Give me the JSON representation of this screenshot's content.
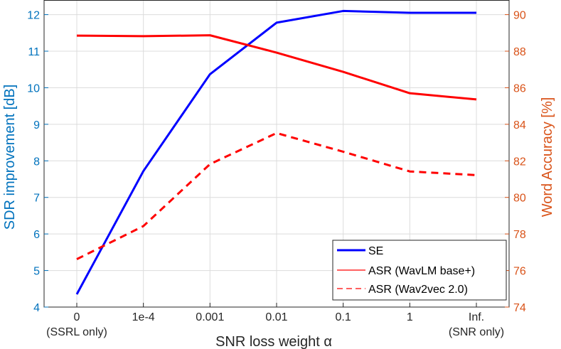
{
  "chart_data": {
    "type": "line",
    "categories": [
      "0",
      "1e-4",
      "0.001",
      "0.01",
      "0.1",
      "1",
      "Inf."
    ],
    "category_sublabels": [
      "(SSRL only)",
      "",
      "",
      "",
      "",
      "",
      "(SNR only)"
    ],
    "xlabel": "SNR loss weight α",
    "ylabel_left": "SDR improvement [dB]",
    "ylabel_right": "Word Accuracy [%]",
    "ylim_left": [
      4,
      12.4
    ],
    "ylim_right": [
      74,
      90.8
    ],
    "yticks_left": [
      4,
      5,
      6,
      7,
      8,
      9,
      10,
      11,
      12
    ],
    "yticks_right": [
      74,
      76,
      78,
      80,
      82,
      84,
      86,
      88,
      90
    ],
    "grid": true,
    "legend_position": "bottom-right",
    "colors": {
      "left_axis": "#0072BD",
      "right_axis": "#D95319",
      "se": "#0000FF",
      "asr": "#FF0000"
    },
    "series": [
      {
        "name": "SE",
        "axis": "left",
        "style": "solid-thick",
        "values": [
          4.35,
          7.72,
          10.37,
          11.78,
          12.1,
          12.05,
          12.05
        ]
      },
      {
        "name": "ASR (WavLM base+)",
        "axis": "right",
        "style": "solid-thick",
        "values": [
          88.85,
          88.82,
          88.87,
          87.92,
          86.87,
          85.7,
          85.36
        ]
      },
      {
        "name": "ASR (Wav2vec 2.0)",
        "axis": "right",
        "style": "dashed-thick",
        "values": [
          76.62,
          78.43,
          81.82,
          83.52,
          82.5,
          81.42,
          81.22
        ]
      }
    ],
    "legend_entries": [
      "SE",
      "ASR (WavLM base+)",
      "ASR (Wav2vec 2.0)"
    ]
  }
}
